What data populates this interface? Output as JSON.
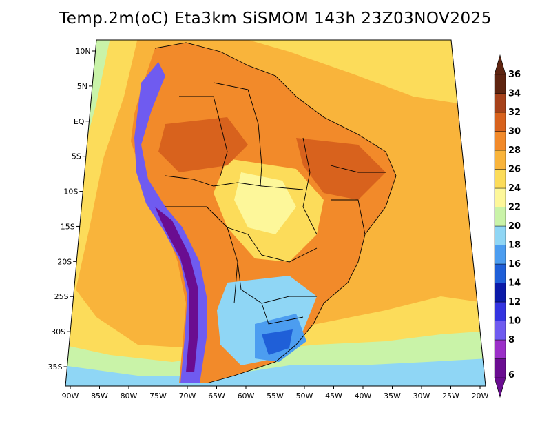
{
  "title": "Temp.2m(oC) Eta3km SiSMOM 143h 23Z03NOV2025",
  "colorbar": {
    "labels": [
      "6",
      "8",
      "10",
      "12",
      "14",
      "16",
      "18",
      "20",
      "22",
      "24",
      "26",
      "28",
      "30",
      "32",
      "34",
      "36"
    ],
    "colors": [
      "#6a0d91",
      "#9b2fc8",
      "#6f5bf0",
      "#3434e0",
      "#0b1aa8",
      "#1f5fd8",
      "#4c9df0",
      "#8fd6f5",
      "#c9f3a8",
      "#fdf79a",
      "#fcdc5a",
      "#f9b43b",
      "#f28a2a",
      "#d8621d",
      "#a6411a",
      "#5e2410"
    ]
  },
  "axes": {
    "lon_labels": [
      "90W",
      "85W",
      "80W",
      "75W",
      "70W",
      "65W",
      "60W",
      "55W",
      "50W",
      "45W",
      "40W",
      "35W",
      "30W",
      "25W",
      "20W"
    ],
    "lat_labels": [
      "10N",
      "5N",
      "EQ",
      "5S",
      "10S",
      "15S",
      "20S",
      "25S",
      "30S",
      "35S"
    ]
  },
  "legend_palette": {
    "ocean_warm": "#f9b43b",
    "ocean_mid": "#fcdc5a",
    "ocean_cool": "#c9f3a8",
    "ocean_cold": "#8fd6f5",
    "land_hot": "#f28a2a",
    "andes_cold": "#6f5bf0"
  }
}
